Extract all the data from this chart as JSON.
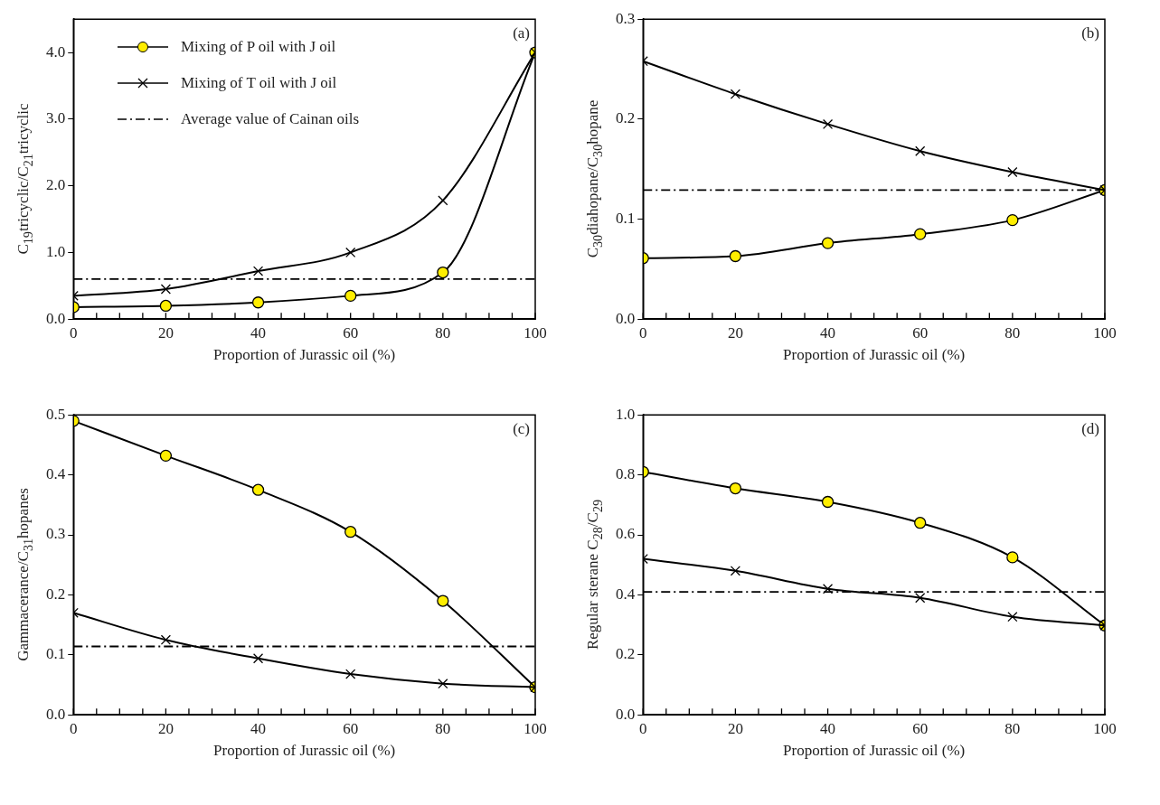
{
  "chart_data": [
    {
      "type": "line",
      "ylabel": "C$_{19}$tricyclic/C$_{21}$tricyclic",
      "xlabel": "Proportion of Jurassic oil (%)",
      "annotations": [
        "(a)"
      ],
      "x": [
        0,
        20,
        40,
        60,
        80,
        100
      ],
      "xlim": [
        0,
        100
      ],
      "ylim": [
        0,
        4.5
      ],
      "xticks": [
        0,
        {
          "value": 5,
          "label": null
        },
        {
          "value": 10,
          "label": null
        },
        {
          "value": 15,
          "label": null
        },
        20,
        {
          "value": 25,
          "label": null
        },
        {
          "value": 30,
          "label": null
        },
        {
          "value": 35,
          "label": null
        },
        40,
        {
          "value": 45,
          "label": null
        },
        {
          "value": 50,
          "label": null
        },
        {
          "value": 55,
          "label": null
        },
        60,
        {
          "value": 65,
          "label": null
        },
        {
          "value": 70,
          "label": null
        },
        {
          "value": 75,
          "label": null
        },
        80,
        {
          "value": 85,
          "label": null
        },
        {
          "value": 90,
          "label": null
        },
        {
          "value": 95,
          "label": null
        },
        100
      ],
      "yticks": [
        {
          "value": 0,
          "label": "0.0"
        },
        {
          "value": 1,
          "label": "1.0"
        },
        {
          "value": 2,
          "label": "2.0"
        },
        {
          "value": 3,
          "label": "3.0"
        },
        {
          "value": 4,
          "label": "4.0"
        }
      ],
      "grid": false,
      "legend": "top left",
      "line_style": "solid",
      "series": [
        {
          "name": "Mixing of P oil with J oil",
          "color": "#ffee00",
          "marker": "circle",
          "values": [
            0.18,
            0.2,
            0.25,
            0.35,
            0.7,
            4.0
          ]
        },
        {
          "name": "Mixing of T oil with J oil",
          "color": "#000000",
          "marker": "cross",
          "values": [
            0.35,
            0.45,
            0.72,
            1.0,
            1.78,
            4.0
          ]
        }
      ],
      "ref_lines": [
        {
          "axis": "y",
          "value": 0.6,
          "label": "Average value of Cainan oils",
          "line_style": "dashdot"
        }
      ]
    },
    {
      "type": "line",
      "ylabel": "C$_{30}$diahopane/C$_{30}$hopane",
      "xlabel": "Proportion of Jurassic oil (%)",
      "annotations": [
        "(b)"
      ],
      "x": [
        0,
        20,
        40,
        60,
        80,
        100
      ],
      "xlim": [
        0,
        100
      ],
      "ylim": [
        0,
        0.3
      ],
      "xticks": [
        0,
        {
          "value": 5,
          "label": null
        },
        {
          "value": 10,
          "label": null
        },
        {
          "value": 15,
          "label": null
        },
        20,
        {
          "value": 25,
          "label": null
        },
        {
          "value": 30,
          "label": null
        },
        {
          "value": 35,
          "label": null
        },
        40,
        {
          "value": 45,
          "label": null
        },
        {
          "value": 50,
          "label": null
        },
        {
          "value": 55,
          "label": null
        },
        60,
        {
          "value": 65,
          "label": null
        },
        {
          "value": 70,
          "label": null
        },
        {
          "value": 75,
          "label": null
        },
        80,
        {
          "value": 85,
          "label": null
        },
        {
          "value": 90,
          "label": null
        },
        {
          "value": 95,
          "label": null
        },
        100
      ],
      "yticks": [
        {
          "value": 0,
          "label": "0.0"
        },
        0.1,
        0.2,
        0.3
      ],
      "grid": false,
      "line_style": "solid",
      "series": [
        {
          "color": "#ffee00",
          "marker": "circle",
          "values": [
            0.061,
            0.063,
            0.076,
            0.085,
            0.099,
            0.129
          ]
        },
        {
          "color": "#000000",
          "marker": "cross",
          "values": [
            0.258,
            0.225,
            0.195,
            0.168,
            0.147,
            0.129
          ]
        }
      ],
      "ref_lines": [
        {
          "axis": "y",
          "value": 0.129,
          "line_style": "dashdot"
        }
      ]
    },
    {
      "type": "line",
      "ylabel": "Gammacerance/C$_{31}$hopanes",
      "xlabel": "Proportion of Jurassic oil (%)",
      "annotations": [
        "(c)"
      ],
      "x": [
        0,
        20,
        40,
        60,
        80,
        100
      ],
      "xlim": [
        0,
        100
      ],
      "ylim": [
        0,
        0.5
      ],
      "xticks": [
        0,
        {
          "value": 5,
          "label": null
        },
        {
          "value": 10,
          "label": null
        },
        {
          "value": 15,
          "label": null
        },
        20,
        {
          "value": 25,
          "label": null
        },
        {
          "value": 30,
          "label": null
        },
        {
          "value": 35,
          "label": null
        },
        40,
        {
          "value": 45,
          "label": null
        },
        {
          "value": 50,
          "label": null
        },
        {
          "value": 55,
          "label": null
        },
        60,
        {
          "value": 65,
          "label": null
        },
        {
          "value": 70,
          "label": null
        },
        {
          "value": 75,
          "label": null
        },
        80,
        {
          "value": 85,
          "label": null
        },
        {
          "value": 90,
          "label": null
        },
        {
          "value": 95,
          "label": null
        },
        100
      ],
      "yticks": [
        {
          "value": 0,
          "label": "0.0"
        },
        0.1,
        0.2,
        0.3,
        0.4,
        0.5
      ],
      "grid": false,
      "line_style": "solid",
      "series": [
        {
          "color": "#ffee00",
          "marker": "circle",
          "values": [
            0.49,
            0.432,
            0.375,
            0.305,
            0.19,
            0.046
          ]
        },
        {
          "color": "#000000",
          "marker": "cross",
          "values": [
            0.17,
            0.125,
            0.094,
            0.068,
            0.052,
            0.046
          ]
        }
      ],
      "ref_lines": [
        {
          "axis": "y",
          "value": 0.114,
          "line_style": "dashdot"
        }
      ]
    },
    {
      "type": "line",
      "ylabel": "Regular sterane C$_{28}$/C$_{29}$",
      "xlabel": "Proportion of Jurassic oil (%)",
      "annotations": [
        "(d)"
      ],
      "x": [
        0,
        20,
        40,
        60,
        80,
        100
      ],
      "xlim": [
        0,
        100
      ],
      "ylim": [
        0,
        1.0
      ],
      "xticks": [
        0,
        {
          "value": 5,
          "label": null
        },
        {
          "value": 10,
          "label": null
        },
        {
          "value": 15,
          "label": null
        },
        20,
        {
          "value": 25,
          "label": null
        },
        {
          "value": 30,
          "label": null
        },
        {
          "value": 35,
          "label": null
        },
        40,
        {
          "value": 45,
          "label": null
        },
        {
          "value": 50,
          "label": null
        },
        {
          "value": 55,
          "label": null
        },
        60,
        {
          "value": 65,
          "label": null
        },
        {
          "value": 70,
          "label": null
        },
        {
          "value": 75,
          "label": null
        },
        80,
        {
          "value": 85,
          "label": null
        },
        {
          "value": 90,
          "label": null
        },
        {
          "value": 95,
          "label": null
        },
        100
      ],
      "yticks": [
        {
          "value": 0,
          "label": "0.0"
        },
        0.2,
        0.4,
        0.6,
        0.8,
        {
          "value": 1,
          "label": "1.0"
        }
      ],
      "grid": false,
      "line_style": "solid",
      "series": [
        {
          "color": "#ffee00",
          "marker": "circle",
          "values": [
            0.81,
            0.755,
            0.71,
            0.64,
            0.525,
            0.298
          ]
        },
        {
          "color": "#000000",
          "marker": "cross",
          "values": [
            0.52,
            0.48,
            0.42,
            0.39,
            0.327,
            0.298
          ]
        }
      ],
      "ref_lines": [
        {
          "axis": "y",
          "value": 0.41,
          "line_style": "dashdot"
        }
      ]
    }
  ]
}
